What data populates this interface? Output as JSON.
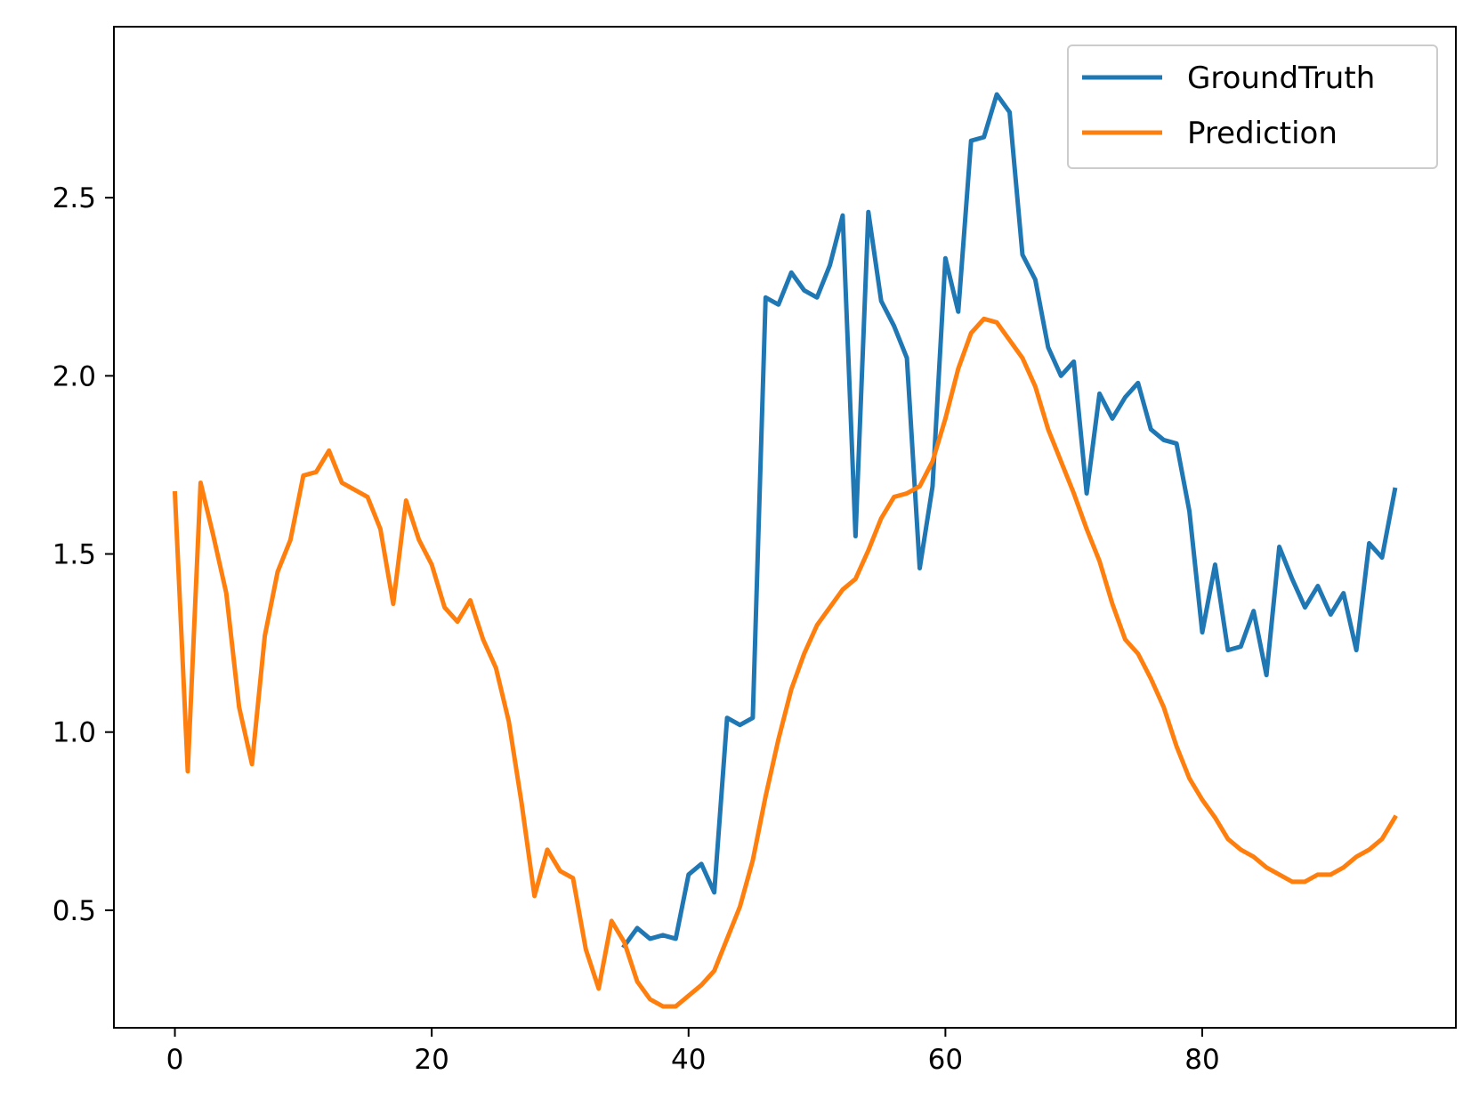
{
  "chart_data": {
    "type": "line",
    "title": "",
    "xlabel": "",
    "ylabel": "",
    "xlim": [
      -4.75,
      99.75
    ],
    "ylim": [
      0.17,
      2.98
    ],
    "xticks": [
      0,
      20,
      40,
      60,
      80
    ],
    "xtick_labels": [
      "0",
      "20",
      "40",
      "60",
      "80"
    ],
    "yticks": [
      0.5,
      1.0,
      1.5,
      2.0,
      2.5
    ],
    "ytick_labels": [
      "0.5",
      "1.0",
      "1.5",
      "2.0",
      "2.5"
    ],
    "grid": false,
    "legend": {
      "placement": "top-right"
    },
    "series": [
      {
        "name": "GroundTruth",
        "color": "#1f77b4",
        "x": [
          35,
          36,
          37,
          38,
          39,
          40,
          41,
          42,
          43,
          44,
          45,
          46,
          47,
          48,
          49,
          50,
          51,
          52,
          53,
          54,
          55,
          56,
          57,
          58,
          59,
          60,
          61,
          62,
          63,
          64,
          65,
          66,
          67,
          68,
          69,
          70,
          71,
          72,
          73,
          74,
          75,
          76,
          77,
          78,
          79,
          80,
          81,
          82,
          83,
          84,
          85,
          86,
          87,
          88,
          89,
          90,
          91,
          92,
          93,
          94,
          95
        ],
        "values": [
          0.4,
          0.45,
          0.42,
          0.43,
          0.42,
          0.6,
          0.63,
          0.55,
          1.04,
          1.02,
          1.04,
          2.22,
          2.2,
          2.29,
          2.24,
          2.22,
          2.31,
          2.45,
          1.55,
          2.46,
          2.21,
          2.14,
          2.05,
          1.46,
          1.69,
          2.33,
          2.18,
          2.66,
          2.67,
          2.79,
          2.74,
          2.34,
          2.27,
          2.08,
          2.0,
          2.04,
          1.67,
          1.95,
          1.88,
          1.94,
          1.98,
          1.85,
          1.82,
          1.81,
          1.62,
          1.28,
          1.47,
          1.23,
          1.24,
          1.34,
          1.16,
          1.52,
          1.43,
          1.35,
          1.41,
          1.33,
          1.39,
          1.23,
          1.53,
          1.49,
          1.68
        ]
      },
      {
        "name": "Prediction",
        "color": "#ff7f0e",
        "x": [
          0,
          1,
          2,
          3,
          4,
          5,
          6,
          7,
          8,
          9,
          10,
          11,
          12,
          13,
          14,
          15,
          16,
          17,
          18,
          19,
          20,
          21,
          22,
          23,
          24,
          25,
          26,
          27,
          28,
          29,
          30,
          31,
          32,
          33,
          34,
          35,
          36,
          37,
          38,
          39,
          40,
          41,
          42,
          43,
          44,
          45,
          46,
          47,
          48,
          49,
          50,
          51,
          52,
          53,
          54,
          55,
          56,
          57,
          58,
          59,
          60,
          61,
          62,
          63,
          64,
          65,
          66,
          67,
          68,
          69,
          70,
          71,
          72,
          73,
          74,
          75,
          76,
          77,
          78,
          79,
          80,
          81,
          82,
          83,
          84,
          85,
          86,
          87,
          88,
          89,
          90,
          91,
          92,
          93,
          94,
          95
        ],
        "values": [
          1.67,
          0.89,
          1.7,
          1.55,
          1.39,
          1.07,
          0.91,
          1.27,
          1.45,
          1.54,
          1.72,
          1.73,
          1.79,
          1.7,
          1.68,
          1.66,
          1.57,
          1.36,
          1.65,
          1.54,
          1.47,
          1.35,
          1.31,
          1.37,
          1.26,
          1.18,
          1.03,
          0.8,
          0.54,
          0.67,
          0.61,
          0.59,
          0.39,
          0.28,
          0.47,
          0.41,
          0.3,
          0.25,
          0.23,
          0.23,
          0.26,
          0.29,
          0.33,
          0.42,
          0.51,
          0.64,
          0.82,
          0.98,
          1.12,
          1.22,
          1.3,
          1.35,
          1.4,
          1.43,
          1.51,
          1.6,
          1.66,
          1.67,
          1.69,
          1.76,
          1.88,
          2.02,
          2.12,
          2.16,
          2.15,
          2.1,
          2.05,
          1.97,
          1.85,
          1.76,
          1.67,
          1.57,
          1.48,
          1.36,
          1.26,
          1.22,
          1.15,
          1.07,
          0.96,
          0.87,
          0.81,
          0.76,
          0.7,
          0.67,
          0.65,
          0.62,
          0.6,
          0.58,
          0.58,
          0.6,
          0.6,
          0.62,
          0.65,
          0.67,
          0.7,
          0.76
        ]
      }
    ]
  }
}
